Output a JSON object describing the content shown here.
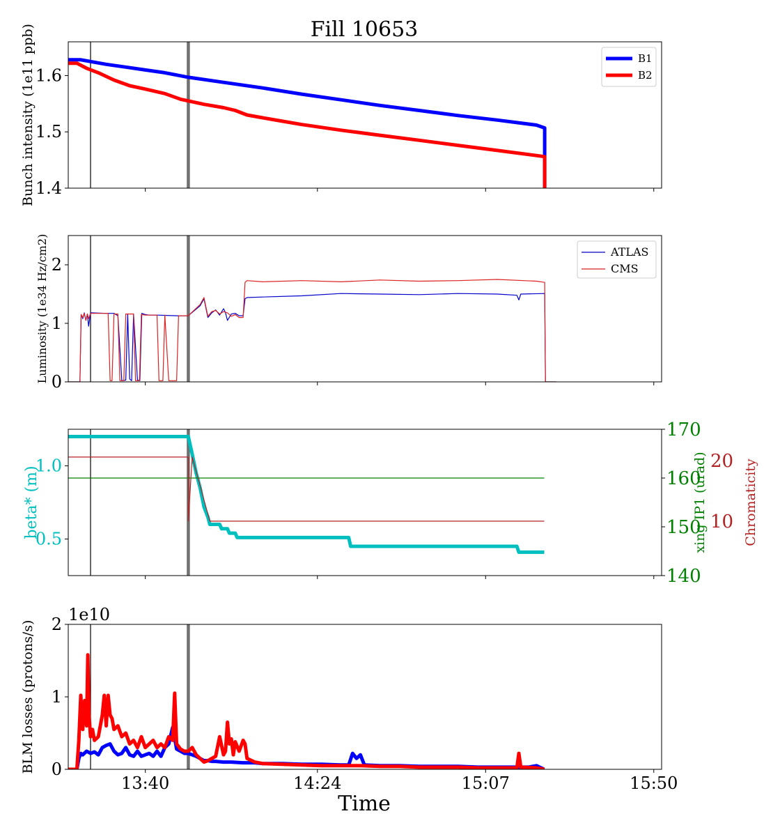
{
  "figure": {
    "title": "Fill 10653",
    "xlabel": "Time"
  },
  "colors": {
    "b1": "#0000ff",
    "b2": "#ff0000",
    "atlas": "#0000cc",
    "cms": "#dd2222",
    "beta": "#00bfbf",
    "xing": "#008000",
    "chroma": "#b22222",
    "vline": "#000000",
    "vline_thick": "#707070"
  },
  "chart_data": [
    {
      "type": "line",
      "ylabel": "Bunch intensity (1e11 ppb)",
      "ylim": [
        1.4,
        1.66
      ],
      "yticks": [
        "1.4",
        "1.5",
        "1.6"
      ],
      "ytick_values": [
        1.4,
        1.5,
        1.6
      ],
      "xticks": [
        "13:40",
        "14:24",
        "15:07",
        "15:50"
      ],
      "xtick_minutes": [
        820,
        864,
        907,
        950
      ],
      "xlim_minutes": [
        800.3,
        952
      ],
      "vlines_minutes": [
        806,
        831
      ],
      "legend": "top-right",
      "series": [
        {
          "name": "B1",
          "color_key": "b1",
          "width": 5,
          "x": [
            800.3,
            803.5,
            806,
            810,
            815,
            820,
            825,
            831,
            840,
            850,
            860,
            870,
            880,
            890,
            900,
            910,
            920,
            922.1,
            922.1
          ],
          "y": [
            1.628,
            1.628,
            1.625,
            1.62,
            1.615,
            1.61,
            1.605,
            1.597,
            1.588,
            1.578,
            1.567,
            1.557,
            1.547,
            1.538,
            1.529,
            1.521,
            1.512,
            1.507,
            1.4
          ]
        },
        {
          "name": "B2",
          "color_key": "b2",
          "width": 5,
          "x": [
            800.3,
            802.5,
            805,
            808,
            812,
            816,
            820,
            825,
            829,
            831,
            835,
            840,
            843,
            846,
            850,
            855,
            860,
            870,
            880,
            890,
            900,
            910,
            920,
            922.1,
            922.1
          ],
          "y": [
            1.622,
            1.622,
            1.613,
            1.605,
            1.592,
            1.582,
            1.576,
            1.568,
            1.558,
            1.555,
            1.549,
            1.543,
            1.538,
            1.53,
            1.525,
            1.519,
            1.513,
            1.503,
            1.494,
            1.485,
            1.476,
            1.467,
            1.458,
            1.456,
            1.4
          ]
        }
      ]
    },
    {
      "type": "line",
      "ylabel": "Luminosity (1e34 Hz/cm2)",
      "ylim": [
        0,
        2.5
      ],
      "yticks": [
        "0",
        "1",
        "2"
      ],
      "ytick_values": [
        0,
        1,
        2
      ],
      "xticks": [
        "13:40",
        "14:24",
        "15:07",
        "15:50"
      ],
      "xtick_minutes": [
        820,
        864,
        907,
        950
      ],
      "xlim_minutes": [
        800.3,
        952
      ],
      "vlines_minutes": [
        806,
        831
      ],
      "legend": "top-right",
      "series": [
        {
          "name": "ATLAS",
          "color_key": "atlas",
          "width": 1.2,
          "x": [
            800.3,
            803.3,
            803.6,
            804,
            804.4,
            804.8,
            805.2,
            805.5,
            806,
            810,
            812,
            813,
            814,
            815,
            815.5,
            816,
            816.5,
            817,
            818,
            818.6,
            819.1,
            820,
            821,
            823,
            828,
            830,
            831,
            834,
            835,
            836,
            837,
            838,
            839,
            840,
            840.5,
            841,
            842,
            843,
            844,
            845,
            845.5,
            846,
            850,
            860,
            870,
            880,
            890,
            900,
            910,
            915,
            915.5,
            916,
            922.1,
            922.3,
            925
          ],
          "y": [
            0,
            0,
            1.15,
            1.08,
            1.18,
            1.05,
            1.16,
            0.95,
            1.18,
            1.17,
            1.17,
            1.13,
            0.02,
            0.03,
            1.16,
            0.05,
            0.02,
            1.16,
            0.03,
            0.02,
            1.17,
            1.15,
            1.14,
            1.14,
            1.13,
            1.13,
            1.13,
            1.3,
            1.42,
            1.1,
            1.18,
            1.23,
            1.14,
            1.25,
            1.18,
            1.05,
            1.16,
            1.17,
            1.13,
            1.13,
            1.42,
            1.44,
            1.45,
            1.47,
            1.51,
            1.5,
            1.49,
            1.51,
            1.5,
            1.48,
            1.4,
            1.5,
            1.51,
            0,
            0
          ]
        },
        {
          "name": "CMS",
          "color_key": "cms",
          "width": 1.2,
          "x": [
            800.3,
            803.3,
            803.6,
            804,
            804.4,
            804.8,
            805.2,
            805.5,
            806,
            810,
            810.5,
            811,
            811.5,
            812,
            813,
            813.5,
            814.5,
            815,
            815.5,
            816,
            817,
            817.5,
            818.5,
            819,
            820,
            822,
            823,
            823.5,
            824.5,
            825,
            826,
            828,
            828.5,
            829,
            829.5,
            831,
            834,
            835,
            836,
            837,
            838,
            839,
            840,
            841,
            842,
            843,
            844,
            845,
            845.5,
            846,
            850,
            860,
            870,
            880,
            890,
            900,
            910,
            920,
            922.1,
            922.3,
            925
          ],
          "y": [
            0,
            0,
            1.15,
            1.1,
            1.17,
            1.05,
            1.16,
            1.08,
            1.17,
            1.17,
            1.17,
            0.02,
            0.02,
            1.16,
            1.16,
            0.02,
            0.02,
            1.16,
            1.16,
            1.16,
            1.16,
            0.02,
            0.02,
            1.15,
            1.14,
            1.14,
            1.14,
            0.02,
            0.02,
            1.14,
            0.02,
            0.02,
            1.13,
            1.13,
            1.13,
            1.13,
            1.32,
            1.44,
            1.12,
            1.2,
            1.22,
            1.16,
            1.2,
            1.18,
            1.12,
            1.15,
            1.1,
            1.1,
            1.7,
            1.73,
            1.71,
            1.73,
            1.71,
            1.74,
            1.72,
            1.73,
            1.75,
            1.72,
            1.7,
            0,
            0
          ]
        }
      ]
    },
    {
      "type": "line",
      "ylabel": "beta* (m)",
      "ylim": [
        0.25,
        1.25
      ],
      "yticks": [
        "0.5",
        "1.0"
      ],
      "ytick_values": [
        0.5,
        1.0
      ],
      "xticks": [
        "13:40",
        "14:24",
        "15:07",
        "15:50"
      ],
      "xtick_minutes": [
        820,
        864,
        907,
        950
      ],
      "xlim_minutes": [
        800.3,
        952
      ],
      "vlines_minutes": [
        806,
        831
      ],
      "series": [
        {
          "name": "beta*",
          "axis": "left",
          "color_key": "beta",
          "width": 5,
          "x": [
            800.3,
            831,
            832,
            833,
            834,
            835,
            836,
            836.5,
            839,
            839.5,
            841,
            841.5,
            843,
            843.5,
            872,
            872.5,
            915,
            915.5,
            922
          ],
          "y": [
            1.2,
            1.2,
            1.08,
            0.95,
            0.85,
            0.72,
            0.65,
            0.6,
            0.6,
            0.57,
            0.57,
            0.54,
            0.54,
            0.51,
            0.51,
            0.45,
            0.45,
            0.41,
            0.41
          ]
        },
        {
          "name": "xing IP1",
          "axis": "right_green",
          "color_key": "xing",
          "width": 1.2,
          "x": [
            800.3,
            922
          ],
          "y": [
            160,
            160
          ]
        },
        {
          "name": "Chromaticity",
          "axis": "right_red",
          "color_key": "chroma",
          "width": 1.2,
          "x": [
            800.3,
            831,
            831,
            832,
            836.5,
            922
          ],
          "y": [
            20.6,
            20.6,
            10,
            20.6,
            10,
            10
          ]
        }
      ],
      "right_axes": [
        {
          "ylabel": "xing IP1 (urad)",
          "color_key": "xing",
          "ylim": [
            140,
            170
          ],
          "yticks": [
            "140",
            "150",
            "160",
            "170"
          ],
          "ytick_values": [
            140,
            150,
            160,
            170
          ]
        },
        {
          "ylabel": "Chromaticity",
          "color_key": "chroma",
          "ylim": [
            1,
            25.2
          ],
          "yticks": [
            "10",
            "20"
          ],
          "ytick_values": [
            10,
            20
          ]
        }
      ]
    },
    {
      "type": "line",
      "ylabel": "BLM losses (protons/s)",
      "offset_label": "1e10",
      "ylim": [
        0,
        2
      ],
      "yticks": [
        "0",
        "1",
        "2"
      ],
      "ytick_values": [
        0,
        1,
        2
      ],
      "xticks": [
        "13:40",
        "14:24",
        "15:07",
        "15:50"
      ],
      "xtick_minutes": [
        820,
        864,
        907,
        950
      ],
      "xlim_minutes": [
        800.3,
        952
      ],
      "vlines_minutes": [
        806,
        831
      ],
      "series": [
        {
          "name": "B1",
          "color_key": "b1",
          "width": 5,
          "x": [
            800.3,
            802.5,
            803,
            803.5,
            804,
            805,
            806,
            807,
            808,
            809,
            810,
            811,
            812,
            813,
            814,
            815,
            816,
            817,
            818,
            819,
            820,
            821,
            822,
            823,
            824,
            825,
            826,
            827,
            828,
            829,
            830,
            831,
            832,
            833,
            834,
            835,
            836,
            837,
            838,
            840,
            842,
            845,
            848,
            850,
            855,
            860,
            865,
            870,
            872,
            873,
            874,
            875,
            876,
            880,
            885,
            890,
            895,
            900,
            905,
            910,
            915,
            918,
            920,
            922
          ],
          "y": [
            0,
            0,
            0.15,
            0.22,
            0.2,
            0.25,
            0.22,
            0.24,
            0.2,
            0.3,
            0.33,
            0.35,
            0.25,
            0.2,
            0.22,
            0.3,
            0.2,
            0.18,
            0.25,
            0.18,
            0.2,
            0.22,
            0.18,
            0.25,
            0.18,
            0.3,
            0.35,
            0.58,
            0.28,
            0.25,
            0.22,
            0.22,
            0.2,
            0.18,
            0.15,
            0.12,
            0.12,
            0.11,
            0.11,
            0.1,
            0.1,
            0.09,
            0.09,
            0.08,
            0.08,
            0.07,
            0.07,
            0.06,
            0.06,
            0.22,
            0.15,
            0.2,
            0.06,
            0.05,
            0.05,
            0.04,
            0.04,
            0.04,
            0.03,
            0.03,
            0.03,
            0.03,
            0.05,
            0
          ]
        },
        {
          "name": "B2",
          "color_key": "b2",
          "width": 5,
          "x": [
            800.3,
            802.5,
            803,
            803.5,
            804,
            804.5,
            805,
            805.3,
            805.6,
            806,
            806.5,
            807,
            808,
            809,
            809.5,
            810,
            810.5,
            811,
            811.5,
            812,
            813,
            814,
            815,
            816,
            817,
            818,
            819,
            820,
            821,
            822,
            823,
            824,
            825,
            826,
            827,
            827.5,
            828,
            829,
            830,
            831,
            832,
            833,
            834,
            835,
            836,
            837,
            838,
            839,
            840,
            840.5,
            841,
            841.5,
            842,
            842.5,
            843,
            844,
            845,
            845.5,
            846,
            848,
            850,
            855,
            860,
            865,
            870,
            875,
            880,
            885,
            890,
            895,
            900,
            905,
            910,
            915,
            915.5,
            916,
            920,
            922
          ],
          "y": [
            0,
            0,
            0.4,
            1.02,
            0.55,
            0.95,
            0.6,
            1.58,
            0.75,
            0.45,
            0.55,
            0.4,
            0.45,
            0.75,
            1.02,
            0.6,
            1.02,
            0.75,
            0.7,
            0.55,
            0.6,
            0.45,
            0.5,
            0.35,
            0.4,
            0.3,
            0.45,
            0.3,
            0.35,
            0.4,
            0.3,
            0.35,
            0.3,
            0.45,
            0.4,
            1.05,
            0.35,
            0.28,
            0.25,
            0.25,
            0.3,
            0.2,
            0.15,
            0.1,
            0.12,
            0.15,
            0.18,
            0.45,
            0.2,
            0.25,
            0.65,
            0.35,
            0.42,
            0.2,
            0.38,
            0.25,
            0.4,
            0.35,
            0.15,
            0.1,
            0.08,
            0.07,
            0.06,
            0.05,
            0.05,
            0.05,
            0.04,
            0.04,
            0.03,
            0.03,
            0.03,
            0.02,
            0.02,
            0.02,
            0.22,
            0.03,
            0.02,
            0
          ]
        }
      ]
    }
  ]
}
